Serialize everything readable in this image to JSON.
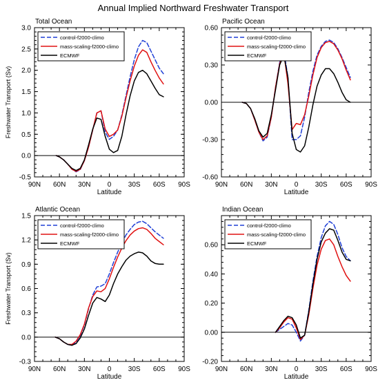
{
  "figure_title": "Annual Implied Northward Freshwater Transport",
  "colors": {
    "control": "#1f3fd6",
    "mass_scaling": "#e01010",
    "ecmwf": "#000000"
  },
  "chart_data": [
    {
      "type": "line",
      "title": "Total Ocean",
      "xlabel": "Latitude",
      "ylabel": "Freshwater Transport (Sv)",
      "xlim": [
        -90,
        90
      ],
      "ylim": [
        -0.5,
        3.0
      ],
      "x_ticks": [
        "90N",
        "60N",
        "30N",
        "0",
        "30S",
        "60S",
        "90S"
      ],
      "y_ticks": [
        "-0.5",
        "0.0",
        "0.5",
        "1.0",
        "1.5",
        "2.0",
        "2.5",
        "3.0"
      ],
      "zero_line": true,
      "legend_position": "top-left",
      "x": [
        -64,
        -60,
        -55,
        -50,
        -45,
        -40,
        -35,
        -30,
        -25,
        -20,
        -15,
        -10,
        -5,
        0,
        5,
        10,
        15,
        20,
        25,
        30,
        35,
        40,
        45,
        50,
        55,
        60,
        65
      ],
      "series": [
        {
          "name": "control-f2000-climo",
          "color": "#1f3fd6",
          "dash": "dash",
          "values": [
            0.0,
            -0.03,
            -0.1,
            -0.2,
            -0.32,
            -0.38,
            -0.33,
            -0.12,
            0.2,
            0.6,
            1.0,
            1.05,
            0.55,
            0.38,
            0.45,
            0.6,
            0.95,
            1.4,
            1.85,
            2.25,
            2.55,
            2.7,
            2.65,
            2.45,
            2.25,
            2.05,
            1.92
          ]
        },
        {
          "name": "mass-scaling-f2000-climo",
          "color": "#e01010",
          "dash": "solid",
          "values": [
            0.0,
            -0.03,
            -0.1,
            -0.2,
            -0.32,
            -0.37,
            -0.32,
            -0.12,
            0.2,
            0.6,
            1.0,
            1.05,
            0.62,
            0.45,
            0.5,
            0.6,
            0.92,
            1.35,
            1.75,
            2.1,
            2.35,
            2.48,
            2.42,
            2.2,
            2.0,
            1.82,
            1.68
          ]
        },
        {
          "name": "ECMWF",
          "color": "#000000",
          "dash": "solid",
          "values": [
            0.0,
            -0.03,
            -0.1,
            -0.2,
            -0.3,
            -0.35,
            -0.3,
            -0.1,
            0.25,
            0.62,
            0.88,
            0.85,
            0.45,
            0.15,
            0.07,
            0.12,
            0.45,
            0.95,
            1.4,
            1.75,
            1.95,
            2.0,
            1.92,
            1.75,
            1.58,
            1.43,
            1.38
          ]
        }
      ]
    },
    {
      "type": "line",
      "title": "Pacific Ocean",
      "xlabel": "Latitude",
      "ylabel": "",
      "xlim": [
        -90,
        90
      ],
      "ylim": [
        -0.6,
        0.6
      ],
      "x_ticks": [
        "90N",
        "60N",
        "30N",
        "0",
        "30S",
        "60S",
        "90S"
      ],
      "y_ticks": [
        "-0.60",
        "-0.30",
        "0.00",
        "0.30",
        "0.60"
      ],
      "zero_line": true,
      "legend_position": "top-left",
      "x": [
        -65,
        -60,
        -55,
        -50,
        -45,
        -40,
        -35,
        -30,
        -25,
        -20,
        -15,
        -10,
        -5,
        0,
        5,
        10,
        15,
        20,
        25,
        30,
        35,
        40,
        45,
        50,
        55,
        60,
        65
      ],
      "series": [
        {
          "name": "control-f2000-climo",
          "color": "#1f3fd6",
          "dash": "dash",
          "values": [
            0.0,
            -0.01,
            -0.05,
            -0.14,
            -0.24,
            -0.31,
            -0.28,
            -0.12,
            0.12,
            0.32,
            0.42,
            0.2,
            -0.3,
            -0.3,
            -0.27,
            -0.12,
            0.08,
            0.25,
            0.38,
            0.45,
            0.49,
            0.5,
            0.48,
            0.43,
            0.36,
            0.28,
            0.2
          ]
        },
        {
          "name": "mass-scaling-f2000-climo",
          "color": "#e01010",
          "dash": "solid",
          "values": [
            0.0,
            -0.01,
            -0.05,
            -0.14,
            -0.24,
            -0.3,
            -0.27,
            -0.12,
            0.12,
            0.31,
            0.4,
            0.15,
            -0.22,
            -0.17,
            -0.18,
            -0.1,
            0.05,
            0.22,
            0.36,
            0.44,
            0.48,
            0.49,
            0.47,
            0.42,
            0.35,
            0.26,
            0.18
          ]
        },
        {
          "name": "ECMWF",
          "color": "#000000",
          "dash": "solid",
          "values": [
            0.0,
            -0.01,
            -0.05,
            -0.13,
            -0.23,
            -0.28,
            -0.25,
            -0.1,
            0.1,
            0.3,
            0.38,
            0.2,
            -0.25,
            -0.38,
            -0.4,
            -0.35,
            -0.2,
            -0.02,
            0.13,
            0.22,
            0.27,
            0.27,
            0.23,
            0.16,
            0.08,
            0.02,
            0.0
          ]
        }
      ]
    },
    {
      "type": "line",
      "title": "Atlantic Ocean",
      "xlabel": "Latitude",
      "ylabel": "Freshwater Transport (Sv)",
      "xlim": [
        -90,
        90
      ],
      "ylim": [
        -0.3,
        1.5
      ],
      "x_ticks": [
        "90N",
        "60N",
        "30N",
        "0",
        "30S",
        "60S",
        "90S"
      ],
      "y_ticks": [
        "-0.3",
        "0.0",
        "0.3",
        "0.6",
        "0.9",
        "1.2",
        "1.5"
      ],
      "zero_line": true,
      "legend_position": "top-left",
      "x": [
        -65,
        -60,
        -55,
        -50,
        -45,
        -40,
        -35,
        -30,
        -25,
        -20,
        -15,
        -10,
        -5,
        0,
        5,
        10,
        15,
        20,
        25,
        30,
        35,
        40,
        45,
        50,
        55,
        60,
        65
      ],
      "series": [
        {
          "name": "control-f2000-climo",
          "color": "#1f3fd6",
          "dash": "dash",
          "values": [
            0.0,
            -0.02,
            -0.06,
            -0.09,
            -0.1,
            -0.06,
            0.02,
            0.15,
            0.35,
            0.52,
            0.62,
            0.63,
            0.66,
            0.78,
            0.92,
            1.05,
            1.16,
            1.26,
            1.33,
            1.39,
            1.42,
            1.43,
            1.4,
            1.35,
            1.3,
            1.26,
            1.22
          ]
        },
        {
          "name": "mass-scaling-f2000-climo",
          "color": "#e01010",
          "dash": "solid",
          "values": [
            0.0,
            -0.02,
            -0.06,
            -0.09,
            -0.09,
            -0.05,
            0.03,
            0.16,
            0.36,
            0.5,
            0.57,
            0.56,
            0.6,
            0.72,
            0.86,
            0.99,
            1.1,
            1.19,
            1.26,
            1.31,
            1.34,
            1.35,
            1.33,
            1.28,
            1.22,
            1.18,
            1.14
          ]
        },
        {
          "name": "ECMWF",
          "color": "#000000",
          "dash": "solid",
          "values": [
            0.0,
            -0.02,
            -0.06,
            -0.09,
            -0.1,
            -0.08,
            -0.01,
            0.1,
            0.27,
            0.42,
            0.49,
            0.47,
            0.44,
            0.52,
            0.66,
            0.78,
            0.87,
            0.95,
            1.0,
            1.03,
            1.05,
            1.04,
            1.0,
            0.94,
            0.91,
            0.9,
            0.9
          ]
        }
      ]
    },
    {
      "type": "line",
      "title": "Indian Ocean",
      "xlabel": "Latitude",
      "ylabel": "",
      "xlim": [
        -90,
        90
      ],
      "ylim": [
        -0.2,
        0.8
      ],
      "x_ticks": [
        "90N",
        "60N",
        "30N",
        "0",
        "30S",
        "60S",
        "90S"
      ],
      "y_ticks": [
        "-0.20",
        "0.00",
        "0.20",
        "0.40",
        "0.60"
      ],
      "zero_line": true,
      "legend_position": "top-left",
      "x": [
        -25,
        -20,
        -15,
        -10,
        -5,
        0,
        5,
        10,
        15,
        20,
        25,
        30,
        35,
        40,
        45,
        50,
        55,
        60,
        65
      ],
      "series": [
        {
          "name": "control-f2000-climo",
          "color": "#1f3fd6",
          "dash": "dash",
          "values": [
            0.0,
            0.02,
            0.04,
            0.06,
            0.05,
            0.0,
            -0.06,
            -0.02,
            0.15,
            0.35,
            0.52,
            0.65,
            0.73,
            0.76,
            0.74,
            0.67,
            0.58,
            0.52,
            0.49
          ]
        },
        {
          "name": "mass-scaling-f2000-climo",
          "color": "#e01010",
          "dash": "solid",
          "values": [
            0.0,
            0.03,
            0.07,
            0.1,
            0.09,
            0.03,
            -0.05,
            -0.02,
            0.12,
            0.3,
            0.46,
            0.57,
            0.63,
            0.64,
            0.6,
            0.52,
            0.45,
            0.39,
            0.35
          ]
        },
        {
          "name": "ECMWF",
          "color": "#000000",
          "dash": "solid",
          "values": [
            0.0,
            0.04,
            0.08,
            0.11,
            0.1,
            0.05,
            -0.04,
            -0.02,
            0.14,
            0.33,
            0.5,
            0.62,
            0.68,
            0.71,
            0.7,
            0.63,
            0.55,
            0.5,
            0.49
          ]
        }
      ]
    }
  ]
}
